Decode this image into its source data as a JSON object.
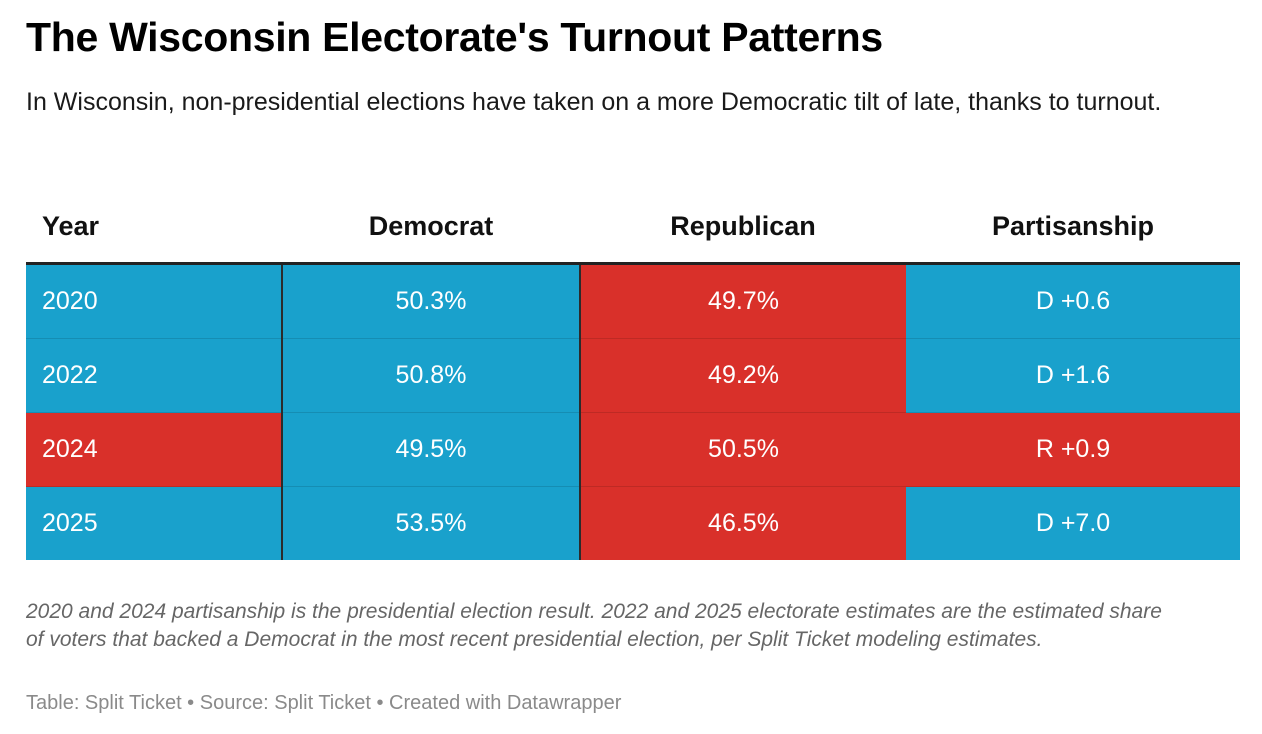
{
  "header": {
    "title": "The Wisconsin Electorate's Turnout Patterns",
    "subtitle": "In Wisconsin, non-presidential elections have taken on a more Democratic tilt of late, thanks to turnout."
  },
  "colors": {
    "democrat": "#19a1cc",
    "republican": "#d9302a"
  },
  "chart_data": {
    "type": "table",
    "title": "The Wisconsin Electorate's Turnout Patterns",
    "columns": [
      "Year",
      "Democrat",
      "Republican",
      "Partisanship"
    ],
    "rows": [
      {
        "year": "2020",
        "democrat": "50.3%",
        "republican": "49.7%",
        "partisanship": "D +0.6",
        "year_color": "democrat",
        "partisanship_color": "democrat"
      },
      {
        "year": "2022",
        "democrat": "50.8%",
        "republican": "49.2%",
        "partisanship": "D +1.6",
        "year_color": "democrat",
        "partisanship_color": "democrat"
      },
      {
        "year": "2024",
        "democrat": "49.5%",
        "republican": "50.5%",
        "partisanship": "R +0.9",
        "year_color": "republican",
        "partisanship_color": "republican"
      },
      {
        "year": "2025",
        "democrat": "53.5%",
        "republican": "46.5%",
        "partisanship": "D +7.0",
        "year_color": "democrat",
        "partisanship_color": "democrat"
      }
    ]
  },
  "footer": {
    "note": "2020 and 2024 partisanship is the presidential election result. 2022 and 2025 electorate estimates are the estimated share of voters that backed a Democrat in the most recent presidential election, per Split Ticket modeling estimates.",
    "credit": "Table: Split Ticket • Source: Split Ticket • Created with Datawrapper"
  }
}
